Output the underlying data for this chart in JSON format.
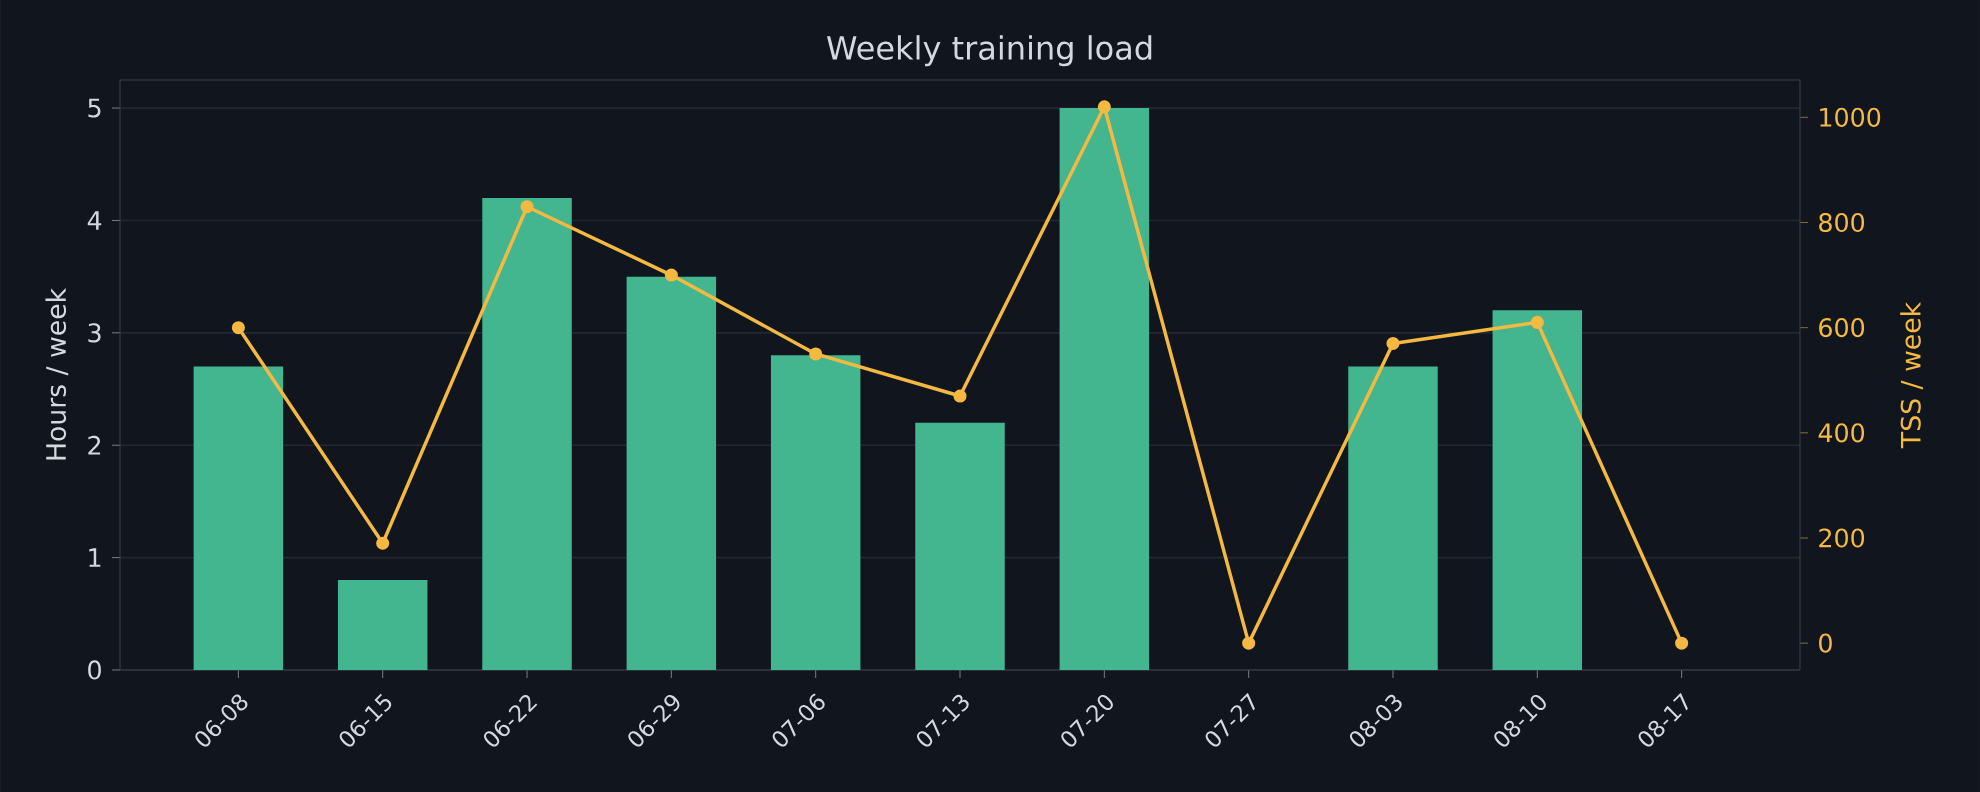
{
  "chart_data": {
    "type": "bar",
    "title": "Weekly training load",
    "ylabel": "Hours / week",
    "y2label": "TSS / week",
    "categories": [
      "06-08",
      "06-15",
      "06-22",
      "06-29",
      "07-06",
      "07-13",
      "07-20",
      "07-27",
      "08-03",
      "08-10",
      "08-17"
    ],
    "series": [
      {
        "color": "#43b68f",
        "values": [
          2.7,
          0.8,
          4.2,
          3.5,
          2.8,
          2.2,
          5.0,
          0,
          2.7,
          3.2,
          0
        ]
      },
      {
        "type": "line",
        "axis": "y2",
        "color": "#f5b942",
        "values": [
          600,
          190,
          830,
          700,
          550,
          470,
          1020,
          0,
          570,
          610,
          0
        ]
      }
    ],
    "ylim": [
      0,
      5.25
    ],
    "yticks": [
      0,
      1,
      2,
      3,
      4,
      5
    ],
    "y2lim": [
      -51,
      1071
    ],
    "y2ticks": [
      0,
      200,
      400,
      600,
      800,
      1000
    ],
    "grid": "y",
    "marker": "circle",
    "line_style": "solid"
  }
}
